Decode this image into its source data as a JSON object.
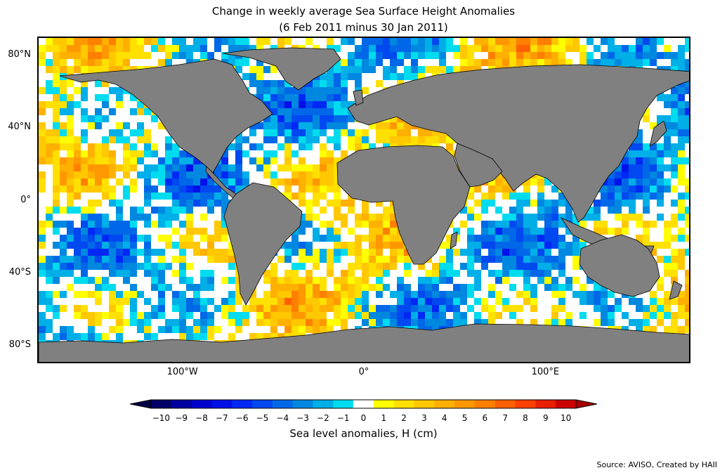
{
  "title_line1": "Change in weekly average Sea Surface Height Anomalies",
  "title_line2": "(6 Feb 2011 minus 30 Jan 2011)",
  "lat_labels": [
    {
      "text": "80°N",
      "lat": 80
    },
    {
      "text": "40°N",
      "lat": 40
    },
    {
      "text": "0°",
      "lat": 0
    },
    {
      "text": "40°S",
      "lat": -40
    },
    {
      "text": "80°S",
      "lat": -80
    }
  ],
  "lon_labels": [
    {
      "text": "100°W",
      "lon": -100
    },
    {
      "text": "0°",
      "lon": 0
    },
    {
      "text": "100°E",
      "lon": 100
    }
  ],
  "map_extent": {
    "lon_min": -180,
    "lon_max": 180,
    "lat_min": -90,
    "lat_max": 90
  },
  "land_color": "#808080",
  "colorbar": {
    "label": "Sea level anomalies, H (cm)",
    "ticks": [
      "−10",
      "−9",
      "−8",
      "−7",
      "−6",
      "−5",
      "−4",
      "−3",
      "−2",
      "−1",
      "0",
      "1",
      "2",
      "3",
      "4",
      "5",
      "6",
      "7",
      "8",
      "9",
      "10"
    ],
    "colors": [
      "#000066",
      "#0000a0",
      "#0000cc",
      "#0010e8",
      "#0028f5",
      "#0048f0",
      "#0068e8",
      "#0088e0",
      "#00aee8",
      "#00dcef",
      "#ffffff",
      "#ffff00",
      "#ffe000",
      "#ffc800",
      "#ffb000",
      "#ff9800",
      "#ff7f00",
      "#ff6000",
      "#ff4000",
      "#e82000",
      "#cc0000"
    ],
    "under_color": "#000044",
    "over_color": "#aa0000"
  },
  "source": "Source: AVISO, Created by HAII"
}
